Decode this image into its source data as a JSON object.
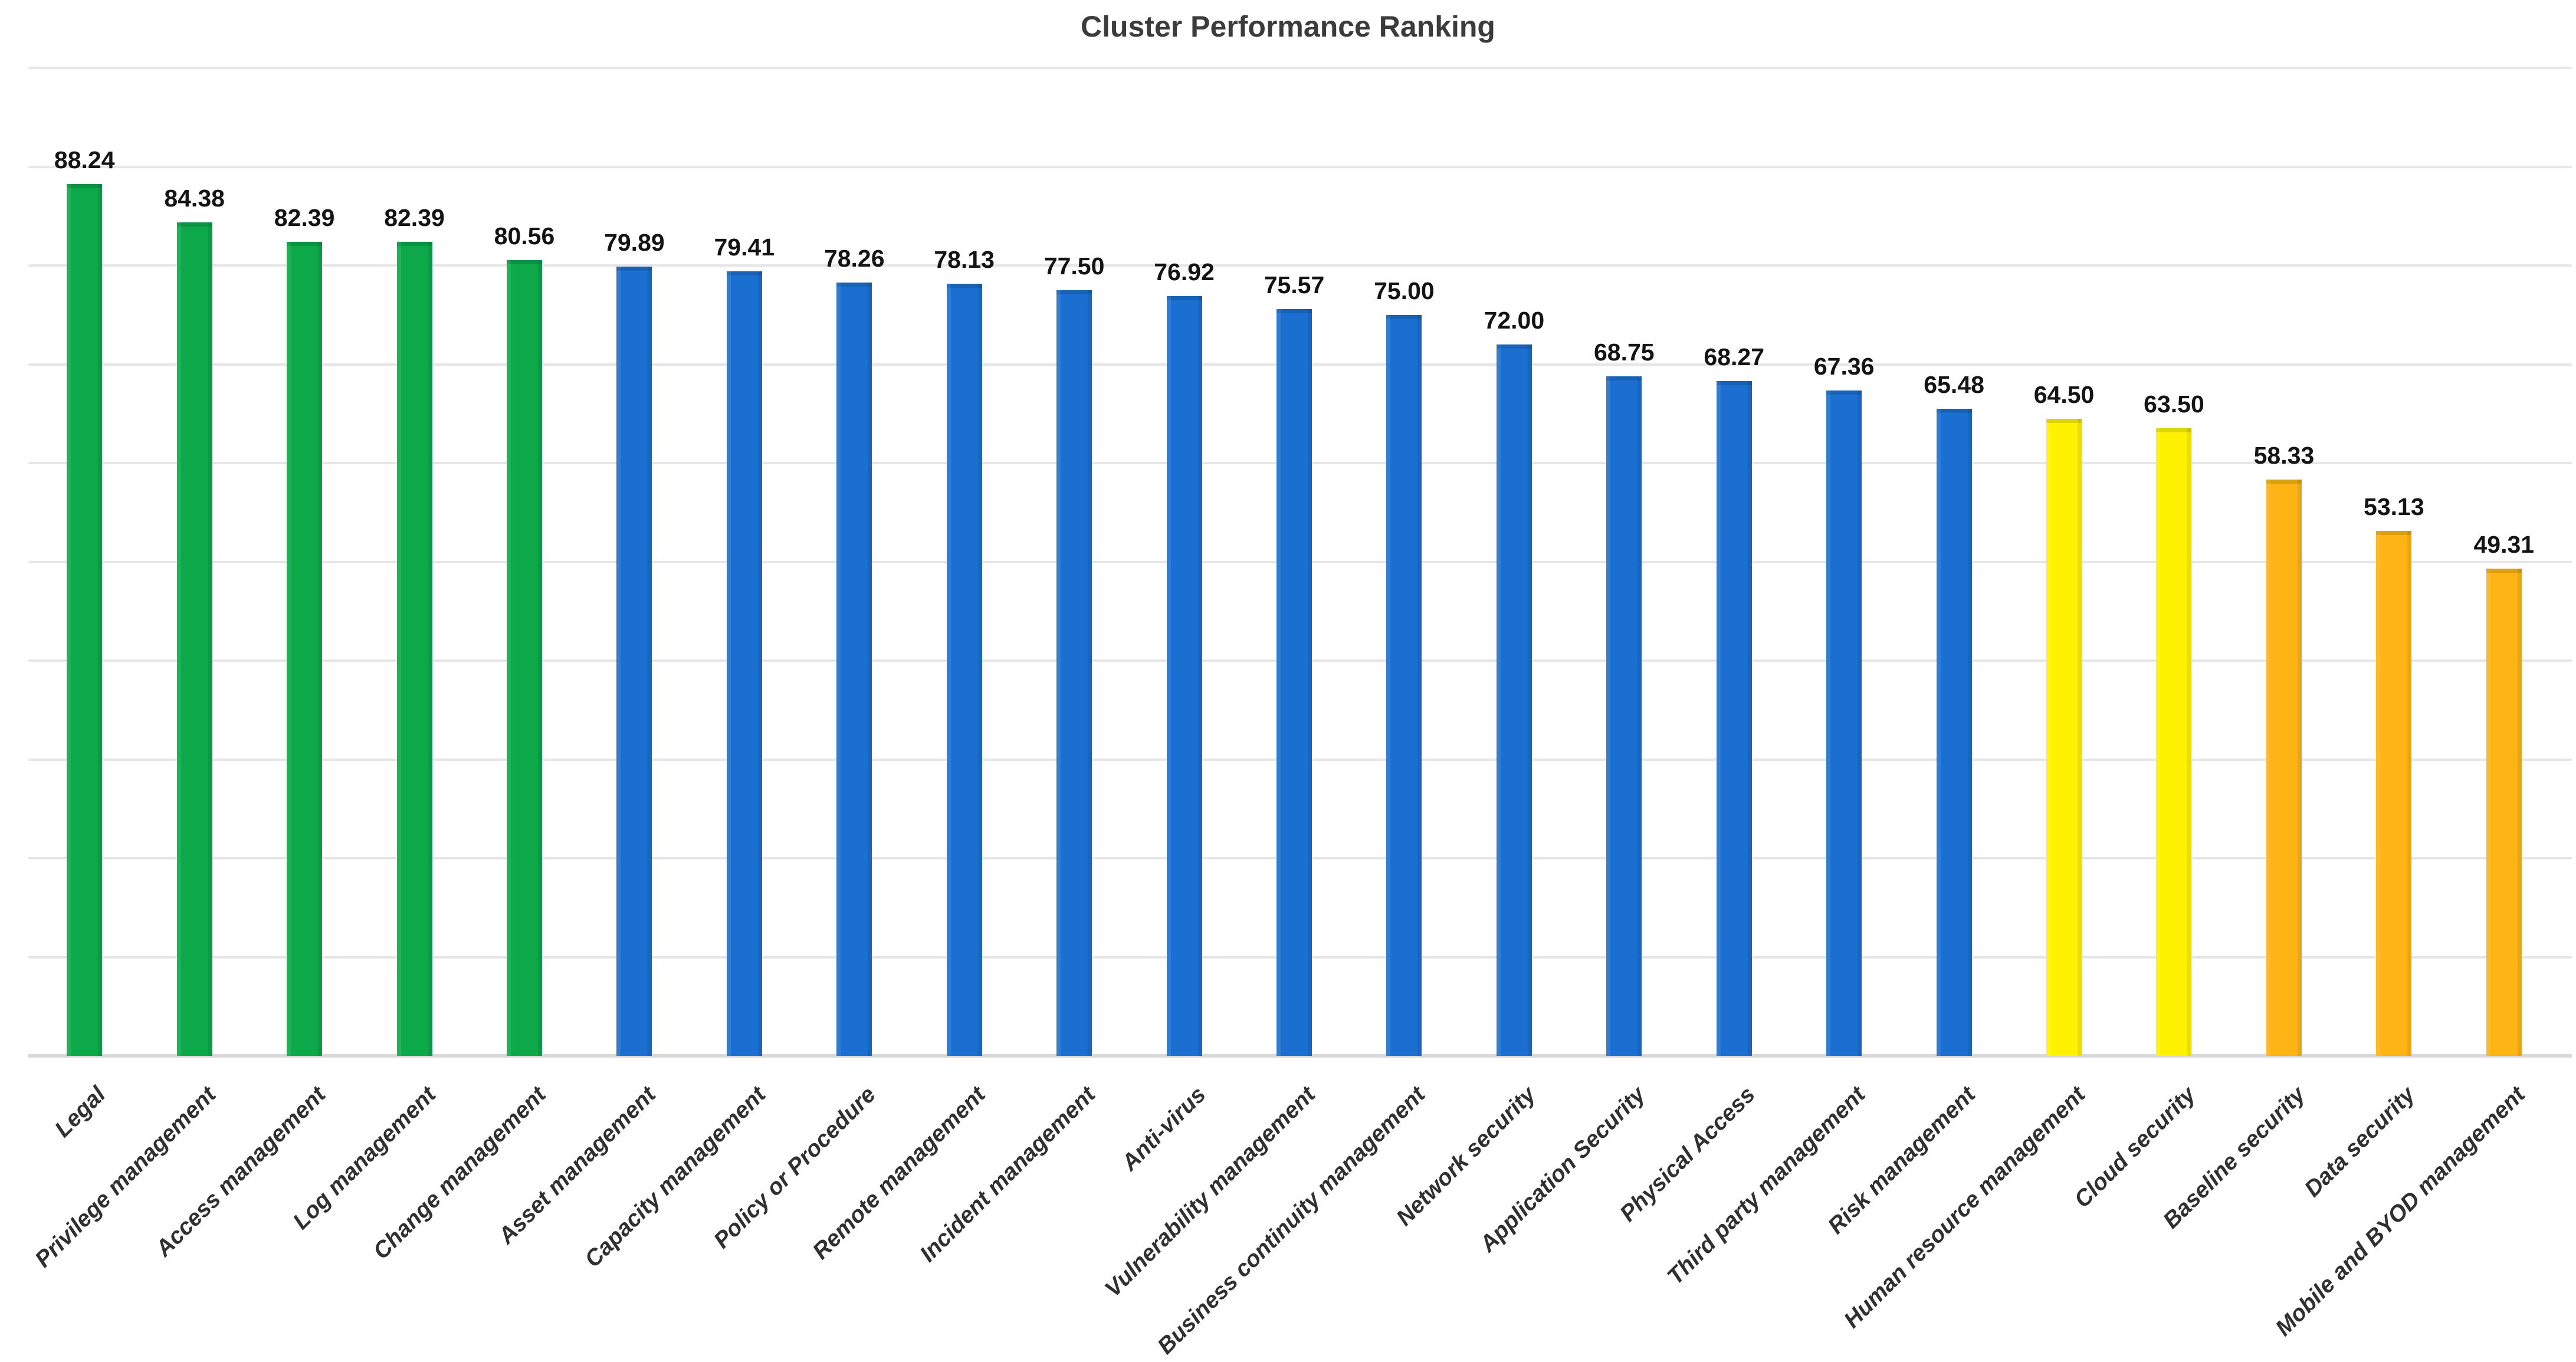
{
  "chart_data": {
    "type": "bar",
    "title": "Cluster Performance Ranking",
    "categories": [
      "Legal",
      "Privilege management",
      "Access management",
      "Log management",
      "Change management",
      "Asset management",
      "Capacity management",
      "Policy or Procedure",
      "Remote management",
      "Incident management",
      "Anti-virus",
      "Vulnerability management",
      "Business continuity management",
      "Network security",
      "Application Security",
      "Physical Access",
      "Third party management",
      "Risk management",
      "Human resource management",
      "Cloud security",
      "Baseline security",
      "Data security",
      "Mobile and BYOD management"
    ],
    "values": [
      88.24,
      84.38,
      82.39,
      82.39,
      80.56,
      79.89,
      79.41,
      78.26,
      78.13,
      77.5,
      76.92,
      75.57,
      75.0,
      72.0,
      68.75,
      68.27,
      67.36,
      65.48,
      64.5,
      63.5,
      58.33,
      53.13,
      49.31
    ],
    "value_label_decimals": 2,
    "bar_color_keys": [
      "green",
      "green",
      "green",
      "green",
      "green",
      "blue",
      "blue",
      "blue",
      "blue",
      "blue",
      "blue",
      "blue",
      "blue",
      "blue",
      "blue",
      "blue",
      "blue",
      "blue",
      "yellow",
      "yellow",
      "orange",
      "orange",
      "orange"
    ],
    "palette": {
      "green": "#0CA849",
      "blue": "#1B6FD0",
      "yellow": "#FFF200",
      "orange": "#FDB414"
    },
    "ylim": [
      0,
      100
    ],
    "grid_step": 10,
    "grid": true,
    "legend": false,
    "x_tick_rotation_deg": 45
  },
  "colors": {
    "background": "#FFFFFF",
    "gridline": "#E6E6E6",
    "axis_line": "#D9D9D9",
    "title_text": "#3B3B3B",
    "value_label_text": "#141414",
    "category_label_text": "#303030"
  }
}
